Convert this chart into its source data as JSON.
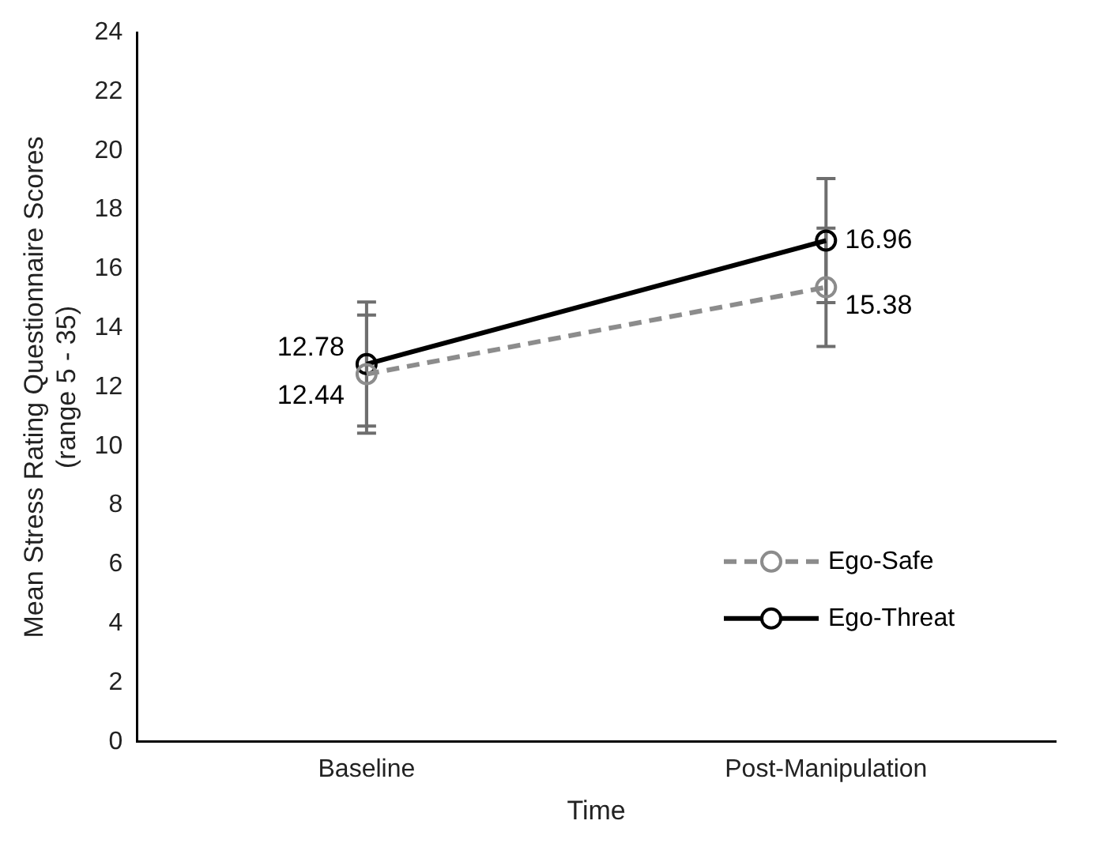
{
  "chart_data": {
    "type": "line",
    "xlabel": "Time",
    "ylabel": "Mean Stress Rating Questionnaire Scores (range 5 - 35)",
    "categories": [
      "Baseline",
      "Post-Manipulation"
    ],
    "series": [
      {
        "name": "Ego-Safe",
        "color": "#8c8c8c",
        "values": [
          12.44,
          15.38
        ],
        "errors": [
          2.0,
          2.0
        ],
        "line_style": "dashed"
      },
      {
        "name": "Ego-Threat",
        "color": "#000000",
        "values": [
          12.78,
          16.96
        ],
        "errors": [
          2.1,
          2.1
        ],
        "line_style": "solid"
      }
    ],
    "ylim": [
      0,
      24
    ],
    "yticks": [
      0,
      2,
      4,
      6,
      8,
      10,
      12,
      14,
      16,
      18,
      20,
      22,
      24
    ],
    "grid": false,
    "legend": "bottom right",
    "marker": "circle",
    "data_labels": true
  }
}
